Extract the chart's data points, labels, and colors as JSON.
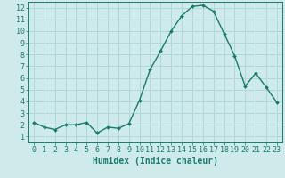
{
  "x": [
    0,
    1,
    2,
    3,
    4,
    5,
    6,
    7,
    8,
    9,
    10,
    11,
    12,
    13,
    14,
    15,
    16,
    17,
    18,
    19,
    20,
    21,
    22,
    23
  ],
  "y": [
    2.2,
    1.8,
    1.6,
    2.0,
    2.0,
    2.2,
    1.3,
    1.8,
    1.7,
    2.1,
    4.1,
    6.7,
    8.3,
    10.0,
    11.3,
    12.1,
    12.2,
    11.7,
    9.8,
    7.9,
    5.3,
    6.4,
    5.2,
    3.9
  ],
  "line_color": "#1a7a6e",
  "marker": "D",
  "marker_size": 2.0,
  "linewidth": 1.0,
  "xlabel": "Humidex (Indice chaleur)",
  "xlim": [
    -0.5,
    23.5
  ],
  "ylim": [
    0.5,
    12.5
  ],
  "yticks": [
    1,
    2,
    3,
    4,
    5,
    6,
    7,
    8,
    9,
    10,
    11,
    12
  ],
  "xticks": [
    0,
    1,
    2,
    3,
    4,
    5,
    6,
    7,
    8,
    9,
    10,
    11,
    12,
    13,
    14,
    15,
    16,
    17,
    18,
    19,
    20,
    21,
    22,
    23
  ],
  "background_color": "#ceeaea",
  "grid_color": "#b0d8d8",
  "axis_color": "#1a7a6e",
  "tick_label_color": "#1a7a6e",
  "xlabel_color": "#1a7a6e",
  "xlabel_fontsize": 7,
  "tick_fontsize": 6
}
